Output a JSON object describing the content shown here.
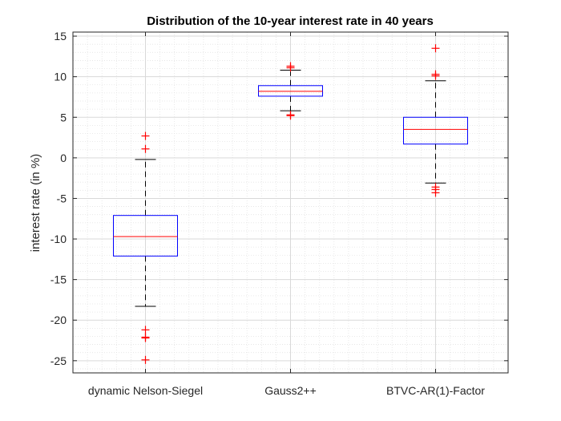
{
  "chart_data": {
    "type": "box",
    "title": "Distribution of the 10-year interest rate in 40 years",
    "xlabel": "",
    "ylabel": "interest rate (in %)",
    "ylim": [
      -26.5,
      15.5
    ],
    "yticks": [
      15,
      10,
      5,
      0,
      -5,
      -10,
      -15,
      -20,
      -25
    ],
    "grid": "on",
    "minor_grid": "on",
    "colors": {
      "box": "#0000ff",
      "median": "#ff0000",
      "whisker": "#000000",
      "outlier": "#ff0000",
      "grid": "#d9d9d9",
      "axis": "#262626"
    },
    "categories": [
      "dynamic Nelson-Siegel",
      "Gauss2++",
      "BTVC-AR(1)-Factor"
    ],
    "series": [
      {
        "category": "dynamic Nelson-Siegel",
        "whisker_low": -18.3,
        "q1": -12.1,
        "median": -9.7,
        "q3": -7.1,
        "whisker_high": -0.2,
        "outliers": [
          2.7,
          1.1,
          -21.2,
          -22.1,
          -22.2,
          -24.9
        ]
      },
      {
        "category": "Gauss2++",
        "whisker_low": 5.8,
        "q1": 7.6,
        "median": 8.2,
        "q3": 8.9,
        "whisker_high": 10.8,
        "outliers": [
          11.3,
          11.1,
          5.3,
          5.2
        ]
      },
      {
        "category": "BTVC-AR(1)-Factor",
        "whisker_low": -3.1,
        "q1": 1.7,
        "median": 3.5,
        "q3": 5.0,
        "whisker_high": 9.5,
        "outliers": [
          13.5,
          10.3,
          10.1,
          -3.6,
          -3.9,
          -4.3
        ]
      }
    ]
  }
}
